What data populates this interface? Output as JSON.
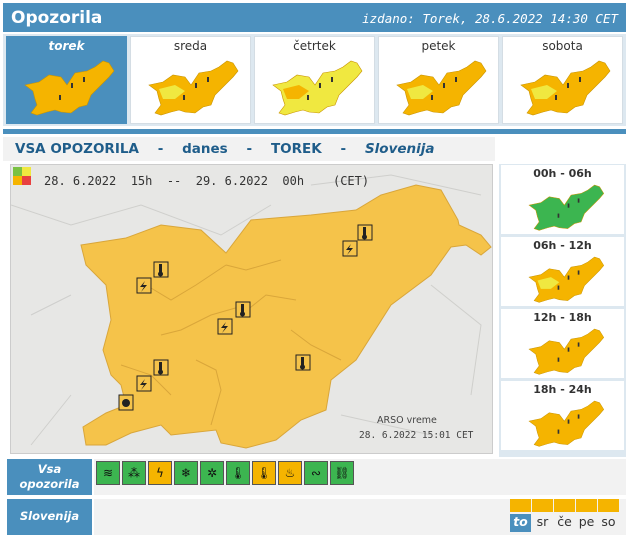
{
  "header": {
    "title": "Opozorila",
    "issued": "izdano: Torek, 28.6.2022 14:30 CET"
  },
  "days": [
    {
      "label": "torek",
      "active": true,
      "fill": "#f5b400",
      "patch": ""
    },
    {
      "label": "sreda",
      "active": false,
      "fill": "#f5b400",
      "patch": "#f0e840"
    },
    {
      "label": "četrtek",
      "active": false,
      "fill": "#f0e840",
      "patch": "#f5b400"
    },
    {
      "label": "petek",
      "active": false,
      "fill": "#f5b400",
      "patch": "#f0e840"
    },
    {
      "label": "sobota",
      "active": false,
      "fill": "#f5b400",
      "patch": "#f0e840"
    }
  ],
  "title_bar": {
    "all": "VSA OPOZORILA",
    "dash": "-",
    "today": "danes",
    "weekday": "TOREK",
    "country": "Slovenija"
  },
  "map": {
    "period": "28. 6.2022  15h  --  29. 6.2022  00h    (CET)",
    "credit_name": "ARSO vreme",
    "credit_time": "28. 6.2022  15:01 CET",
    "fill_color": "#f5c34a",
    "legend_colors": [
      "#7ac142",
      "#f0e840",
      "#f5b400",
      "#e84040"
    ]
  },
  "periods": [
    {
      "label": "00h - 06h",
      "fill": "#3cb550",
      "patch": ""
    },
    {
      "label": "06h - 12h",
      "fill": "#f5b400",
      "patch": "#f0e840"
    },
    {
      "label": "12h - 18h",
      "fill": "#f5b400",
      "patch": ""
    },
    {
      "label": "18h - 24h",
      "fill": "#f5b400",
      "patch": ""
    }
  ],
  "bottom": {
    "all_label": "Vsa opozorila",
    "country_label": "Slovenija",
    "icons": [
      {
        "name": "wind-icon",
        "glyph": "≋",
        "color": "#3cb550"
      },
      {
        "name": "rain-icon",
        "glyph": "⁂",
        "color": "#3cb550"
      },
      {
        "name": "thunderstorm-icon",
        "glyph": "ϟ",
        "color": "#f5b400"
      },
      {
        "name": "snow-icon",
        "glyph": "❄",
        "color": "#3cb550"
      },
      {
        "name": "snow-ice-icon",
        "glyph": "✲",
        "color": "#3cb550"
      },
      {
        "name": "low-temperature-icon",
        "glyph": "🌡",
        "color": "#3cb550"
      },
      {
        "name": "high-temperature-icon",
        "glyph": "🌡",
        "color": "#f5b400"
      },
      {
        "name": "forest-fire-icon",
        "glyph": "♨",
        "color": "#f5b400"
      },
      {
        "name": "fog-icon",
        "glyph": "∾",
        "color": "#3cb550"
      },
      {
        "name": "flood-icon",
        "glyph": "⛓",
        "color": "#3cb550"
      }
    ],
    "days_short": [
      {
        "label": "to",
        "active": true
      },
      {
        "label": "sr",
        "active": false
      },
      {
        "label": "če",
        "active": false
      },
      {
        "label": "pe",
        "active": false
      },
      {
        "label": "so",
        "active": false
      }
    ]
  }
}
